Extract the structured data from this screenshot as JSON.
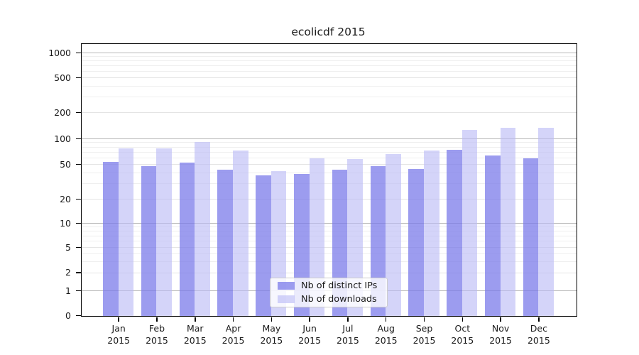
{
  "chart_data": {
    "type": "bar",
    "title": "ecolicdf 2015",
    "categories": [
      "Jan 2015",
      "Feb 2015",
      "Mar 2015",
      "Apr 2015",
      "May 2015",
      "Jun 2015",
      "Jul 2015",
      "Aug 2015",
      "Sep 2015",
      "Oct 2015",
      "Nov 2015",
      "Dec 2015"
    ],
    "x_tick_months": [
      "Jan",
      "Feb",
      "Mar",
      "Apr",
      "May",
      "Jun",
      "Jul",
      "Aug",
      "Sep",
      "Oct",
      "Nov",
      "Dec"
    ],
    "x_tick_year": "2015",
    "series": [
      {
        "name": "Nb of distinct IPs",
        "values": [
          54,
          48,
          53,
          44,
          38,
          39,
          44,
          48,
          45,
          75,
          64,
          60
        ]
      },
      {
        "name": "Nb of downloads",
        "values": [
          78,
          78,
          92,
          74,
          42,
          60,
          58,
          67,
          74,
          127,
          136,
          134
        ]
      }
    ],
    "y_ticks": [
      0,
      1,
      2,
      5,
      10,
      20,
      50,
      100,
      200,
      500,
      1000
    ],
    "xlabel": "",
    "ylabel": "",
    "yscale": "symlog (log above 1, compressed linear 0-1)",
    "ylim": [
      0,
      1300
    ],
    "grid": true,
    "legend_position": "inside plot, lower center"
  },
  "colors": {
    "bar_ips": "rgba(122,122,233,0.74)",
    "bar_downloads": "rgba(186,186,246,0.62)",
    "grid_major": "#b8b8b8",
    "grid_mid": "#e4e4e4",
    "grid_minor": "#efefef",
    "spine": "#000000",
    "text": "#1a1a1a",
    "legend_border": "#cccccc",
    "legend_bg": "rgba(255,255,255,0.8)"
  }
}
